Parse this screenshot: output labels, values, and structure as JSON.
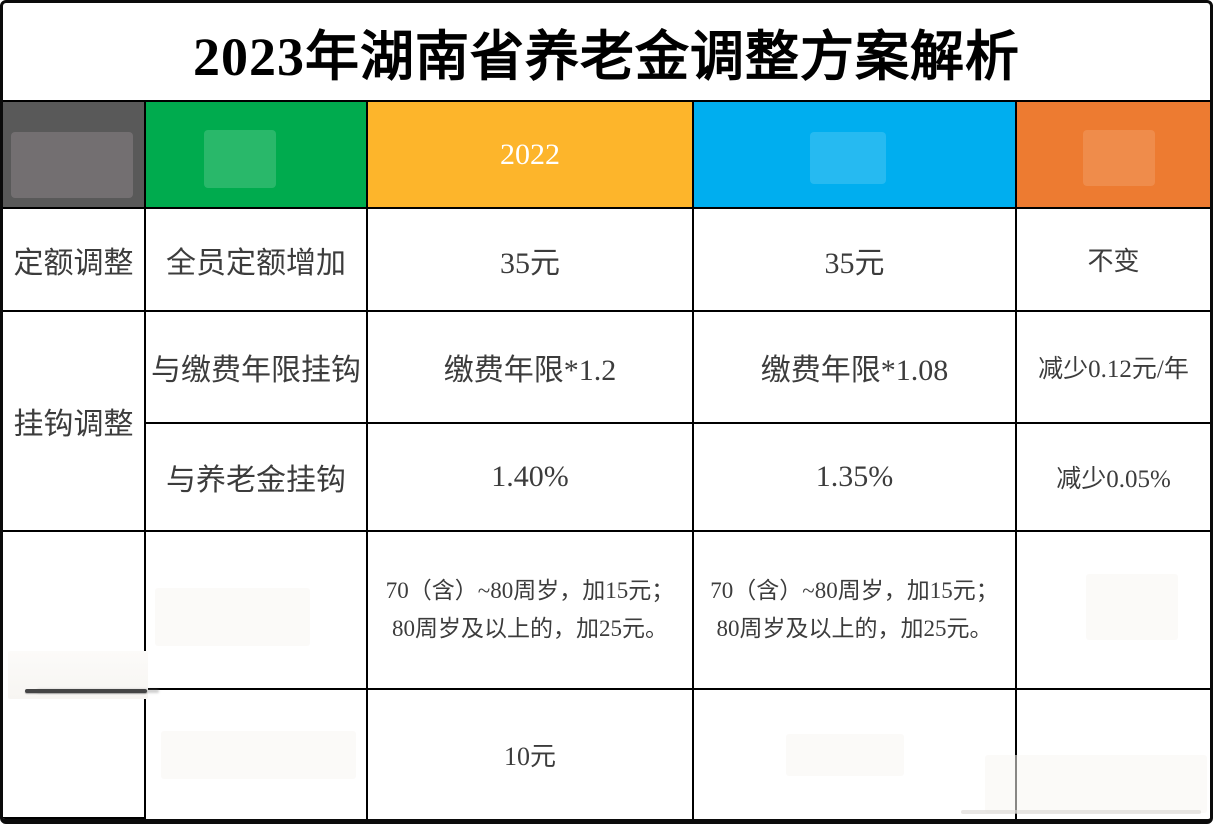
{
  "title": "2023年湖南省养老金调整方案解析",
  "header": {
    "category_label": "",
    "item_label": "",
    "col_2022_label": "2022",
    "col_2023_label": "",
    "change_label": "",
    "colors": {
      "category_bg": "#595959",
      "item_bg": "#00AB4E",
      "col_2022_bg": "#FDB52B",
      "col_2023_bg": "#00AEEF",
      "change_bg": "#ED7B31"
    }
  },
  "rows": {
    "fixed": {
      "category": "定额调整",
      "item": "全员定额增加",
      "y2022": "35元",
      "y2023": "35元",
      "change": "不变"
    },
    "linked_category": "挂钩调整",
    "linked_years": {
      "item": "与缴费年限挂钩",
      "y2022": "缴费年限*1.2",
      "y2023": "缴费年限*1.08",
      "change": "减少0.12元/年"
    },
    "linked_pension": {
      "item": "与养老金挂钩",
      "y2022": "1.40%",
      "y2023": "1.35%",
      "change": "减少0.05%"
    },
    "tilt": {
      "category": "",
      "item": "",
      "y2022_line1": "70（含）~80周岁，加15元；",
      "y2022_line2": "80周岁及以上的，加25元。",
      "y2023_line1": "70（含）~80周岁，加15元；",
      "y2023_line2": "80周岁及以上的，加25元。",
      "change": ""
    },
    "bottom": {
      "item": "",
      "y2022": "10元",
      "y2023": "",
      "change": ""
    }
  },
  "chart_data": {
    "type": "table",
    "title": "2023年湖南省养老金调整方案解析",
    "columns": [
      "",
      "",
      "2022",
      "",
      ""
    ],
    "rows": [
      [
        "定额调整",
        "全员定额增加",
        "35元",
        "35元",
        "不变"
      ],
      [
        "挂钩调整",
        "与缴费年限挂钩",
        "缴费年限*1.2",
        "缴费年限*1.08",
        "减少0.12元/年"
      ],
      [
        "挂钩调整",
        "与养老金挂钩",
        "1.40%",
        "1.35%",
        "减少0.05%"
      ],
      [
        "",
        "",
        "70（含）~80周岁，加15元；80周岁及以上的，加25元。",
        "70（含）~80周岁，加15元；80周岁及以上的，加25元。",
        ""
      ],
      [
        "",
        "",
        "10元",
        "",
        ""
      ]
    ],
    "header_colors": [
      "#595959",
      "#00AB4E",
      "#FDB52B",
      "#00AEEF",
      "#ED7B31"
    ]
  }
}
